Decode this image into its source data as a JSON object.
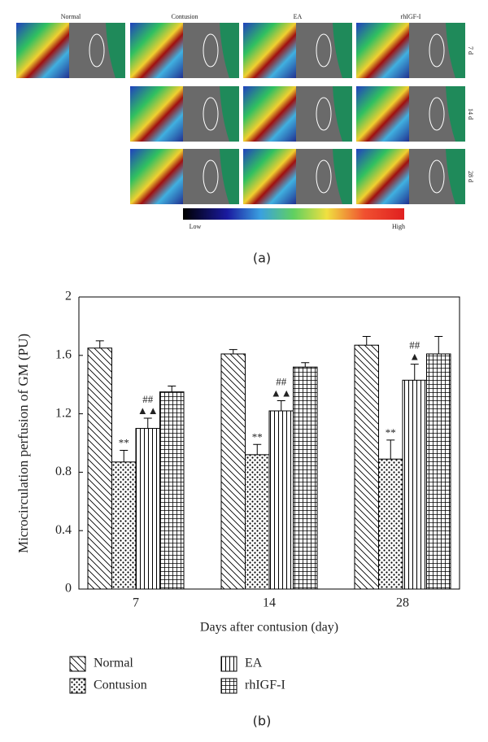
{
  "panel_a": {
    "columns": [
      "Normal",
      "Contusion",
      "EA",
      "rhIGF-I"
    ],
    "rows": [
      "7 d",
      "14 d",
      "28 d"
    ],
    "colorbar": {
      "low": "Low",
      "high": "High"
    },
    "caption": "(a)"
  },
  "chart_data": {
    "type": "bar",
    "caption": "(b)",
    "y_label": "Microcirculation perfusion of GM (PU)",
    "x_label": "Days after contusion (day)",
    "categories": [
      "7",
      "14",
      "28"
    ],
    "series": [
      {
        "name": "Normal",
        "color": "#000000",
        "hatch": "backslash",
        "values": [
          1.65,
          1.61,
          1.67
        ],
        "errors": [
          0.05,
          0.03,
          0.06
        ]
      },
      {
        "name": "Contusion",
        "color": "#000000",
        "hatch": "dots",
        "values": [
          0.87,
          0.92,
          0.89
        ],
        "errors": [
          0.08,
          0.07,
          0.13
        ],
        "annotations": [
          [
            "**"
          ],
          [
            "**"
          ],
          [
            "**"
          ]
        ]
      },
      {
        "name": "EA",
        "color": "#000000",
        "hatch": "vertical",
        "values": [
          1.1,
          1.22,
          1.43
        ],
        "errors": [
          0.07,
          0.07,
          0.11
        ],
        "annotations": [
          [
            "##",
            "▲▲"
          ],
          [
            "##",
            "▲▲"
          ],
          [
            "##",
            "▲"
          ]
        ]
      },
      {
        "name": "rhIGF-I",
        "color": "#000000",
        "hatch": "grid",
        "values": [
          1.35,
          1.52,
          1.61
        ],
        "errors": [
          0.04,
          0.03,
          0.12
        ]
      }
    ],
    "ylim": [
      0,
      2
    ],
    "yticks": [
      0,
      0.4,
      0.8,
      1.2,
      1.6,
      2
    ],
    "legend": "bottom"
  }
}
